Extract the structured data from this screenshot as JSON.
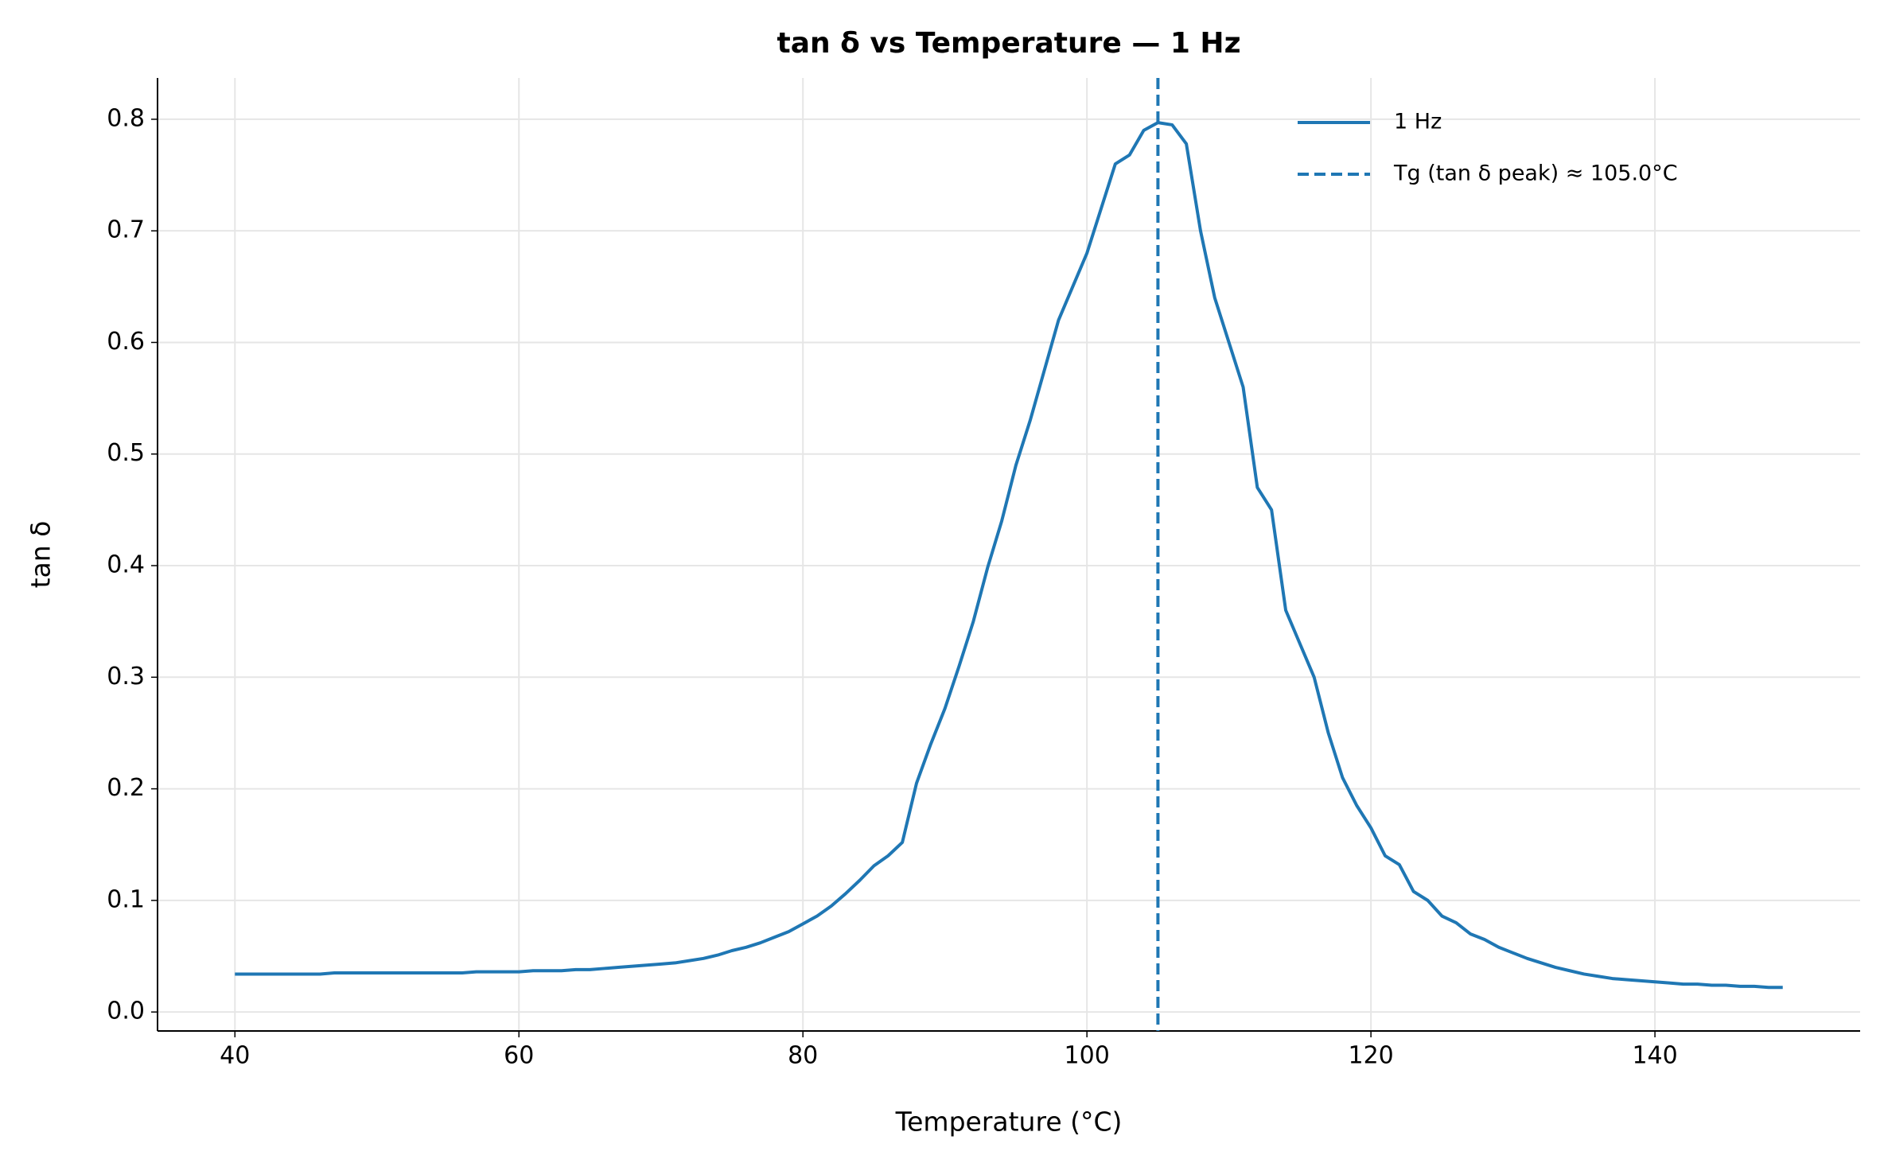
{
  "chart_data": {
    "type": "line",
    "title": "tan δ vs Temperature — 1 Hz",
    "xlabel": "Temperature (°C)",
    "ylabel": "tan δ",
    "x": [
      40,
      41,
      42,
      43,
      44,
      45,
      46,
      47,
      48,
      49,
      50,
      51,
      52,
      53,
      54,
      55,
      56,
      57,
      58,
      59,
      60,
      61,
      62,
      63,
      64,
      65,
      66,
      67,
      68,
      69,
      70,
      71,
      72,
      73,
      74,
      75,
      76,
      77,
      78,
      79,
      80,
      81,
      82,
      83,
      84,
      85,
      86,
      87,
      88,
      89,
      90,
      91,
      92,
      93,
      94,
      95,
      96,
      97,
      98,
      99,
      100,
      101,
      102,
      103,
      104,
      105,
      106,
      107,
      108,
      109,
      110,
      111,
      112,
      113,
      114,
      115,
      116,
      117,
      118,
      119,
      120,
      121,
      122,
      123,
      124,
      125,
      126,
      127,
      128,
      129,
      130,
      131,
      132,
      133,
      134,
      135,
      136,
      137,
      138,
      139,
      140,
      141,
      142,
      143,
      144,
      145,
      146,
      147,
      148,
      149
    ],
    "series": [
      {
        "name": "1 Hz",
        "color": "#1f77b4",
        "values": [
          0.034,
          0.034,
          0.034,
          0.034,
          0.034,
          0.034,
          0.034,
          0.035,
          0.035,
          0.035,
          0.035,
          0.035,
          0.035,
          0.035,
          0.035,
          0.035,
          0.035,
          0.036,
          0.036,
          0.036,
          0.036,
          0.037,
          0.037,
          0.037,
          0.038,
          0.038,
          0.039,
          0.04,
          0.041,
          0.042,
          0.043,
          0.044,
          0.046,
          0.048,
          0.051,
          0.055,
          0.058,
          0.062,
          0.067,
          0.072,
          0.079,
          0.086,
          0.095,
          0.106,
          0.118,
          0.131,
          0.14,
          0.152,
          0.205,
          0.24,
          0.272,
          0.31,
          0.35,
          0.398,
          0.44,
          0.49,
          0.53,
          0.575,
          0.62,
          0.65,
          0.68,
          0.72,
          0.76,
          0.768,
          0.79,
          0.797,
          0.795,
          0.778,
          0.7,
          0.64,
          0.6,
          0.56,
          0.47,
          0.45,
          0.36,
          0.33,
          0.3,
          0.25,
          0.21,
          0.185,
          0.165,
          0.14,
          0.132,
          0.108,
          0.1,
          0.086,
          0.08,
          0.07,
          0.065,
          0.058,
          0.053,
          0.048,
          0.044,
          0.04,
          0.037,
          0.034,
          0.032,
          0.03,
          0.029,
          0.028,
          0.027,
          0.026,
          0.025,
          0.025,
          0.024,
          0.024,
          0.023,
          0.023,
          0.022,
          0.022
        ]
      }
    ],
    "reference_lines": [
      {
        "name": "Tg (tan δ peak) ≈ 105.0°C",
        "x": 105.0,
        "color": "#1f77b4",
        "style": "dashed"
      }
    ],
    "xlim": [
      34.55,
      154.45
    ],
    "ylim": [
      -0.017,
      0.837
    ],
    "xticks": [
      40,
      60,
      80,
      100,
      120,
      140
    ],
    "yticks": [
      {
        "value": 0,
        "label": "0.0"
      },
      0.1,
      0.2,
      0.3,
      0.4,
      0.5,
      0.6,
      0.7,
      0.8
    ],
    "grid": true,
    "legend": "upper right"
  }
}
